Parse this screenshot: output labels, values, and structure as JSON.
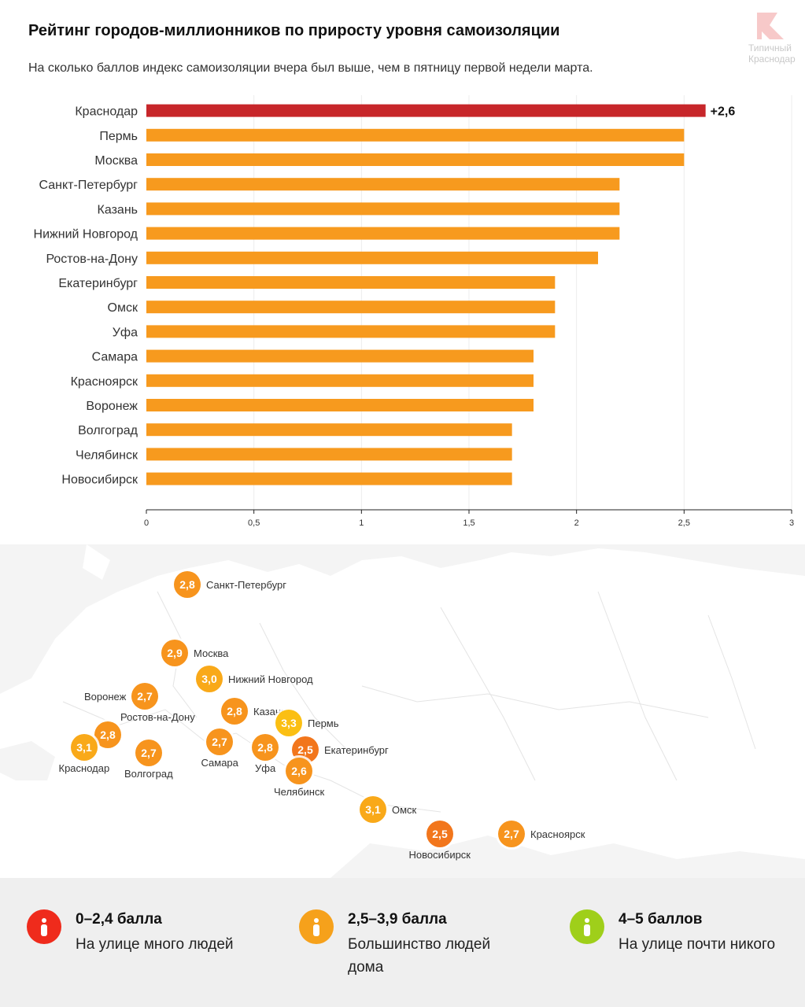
{
  "header": {
    "title": "Рейтинг городов-миллионников по приросту уровня самоизоляции",
    "subtitle": "На сколько баллов индекс самоизоляции вчера был выше, чем в пятницу первой недели марта.",
    "logo_text_line1": "Типичный",
    "logo_text_line2": "Краснодар"
  },
  "colors": {
    "highlight": "#c7262a",
    "bar": "#f79a1e",
    "legend_red": "#ef2b1c",
    "legend_orange": "#f6a11b",
    "legend_green": "#9fcf1a"
  },
  "chart_data": {
    "type": "bar",
    "orientation": "horizontal",
    "categories": [
      "Краснодар",
      "Пермь",
      "Москва",
      "Санкт-Петербург",
      "Казань",
      "Нижний Новгород",
      "Ростов-на-Дону",
      "Екатеринбург",
      "Омск",
      "Уфа",
      "Самара",
      "Красноярск",
      "Воронеж",
      "Волгоград",
      "Челябинск",
      "Новосибирск"
    ],
    "values": [
      2.6,
      2.5,
      2.5,
      2.2,
      2.2,
      2.2,
      2.1,
      1.9,
      1.9,
      1.9,
      1.8,
      1.8,
      1.8,
      1.7,
      1.7,
      1.7
    ],
    "highlight_index": 0,
    "highlight_label": "+2,6",
    "xlim": [
      0,
      3
    ],
    "xticks": [
      0,
      0.5,
      1,
      1.5,
      2,
      2.5,
      3
    ],
    "xtick_labels": [
      "0",
      "0,5",
      "1",
      "1,5",
      "2",
      "2,5",
      "3"
    ],
    "grid": true
  },
  "map": {
    "cities": [
      {
        "name": "Санкт-Петербург",
        "value": "2,8",
        "level": "orange"
      },
      {
        "name": "Москва",
        "value": "2,9",
        "level": "orange"
      },
      {
        "name": "Нижний Новгород",
        "value": "3,0",
        "level": "amber"
      },
      {
        "name": "Воронеж",
        "value": "2,7",
        "level": "orange"
      },
      {
        "name": "Казань",
        "value": "2,8",
        "level": "orange"
      },
      {
        "name": "Ростов-на-Дону",
        "value": "2,8",
        "level": "orange"
      },
      {
        "name": "Пермь",
        "value": "3,3",
        "level": "yellow"
      },
      {
        "name": "Краснодар",
        "value": "3,1",
        "level": "amber"
      },
      {
        "name": "Волгоград",
        "value": "2,7",
        "level": "orange"
      },
      {
        "name": "Самара",
        "value": "2,7",
        "level": "orange"
      },
      {
        "name": "Уфа",
        "value": "2,8",
        "level": "orange"
      },
      {
        "name": "Екатеринбург",
        "value": "2,5",
        "level": "deep"
      },
      {
        "name": "Челябинск",
        "value": "2,6",
        "level": "orange"
      },
      {
        "name": "Омск",
        "value": "3,1",
        "level": "amber"
      },
      {
        "name": "Новосибирск",
        "value": "2,5",
        "level": "deep"
      },
      {
        "name": "Красноярск",
        "value": "2,7",
        "level": "orange"
      }
    ]
  },
  "legend": {
    "items": [
      {
        "range": "0–2,4 балла",
        "desc": "На улице много людей"
      },
      {
        "range": "2,5–3,9 балла",
        "desc": "Большинство людей дома"
      },
      {
        "range": "4–5 баллов",
        "desc": "На улице почти никого"
      }
    ]
  }
}
